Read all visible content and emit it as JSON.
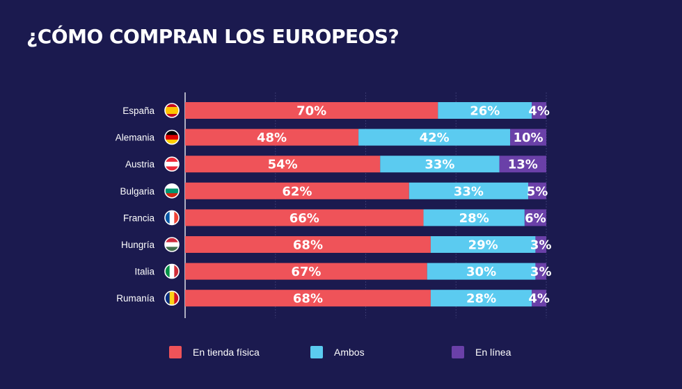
{
  "title": "¿CÓMO COMPRAN LOS EUROPEOS?",
  "colors": {
    "background": "#1b1a4f",
    "tienda": "#ef5359",
    "ambos": "#5bcbf0",
    "linea": "#6a40a8",
    "axis": "#ffffff",
    "grid": "#3a3970"
  },
  "chart_data": {
    "type": "bar",
    "orientation": "horizontal",
    "stacked": true,
    "title": "¿CÓMO COMPRAN LOS EUROPEOS?",
    "xlim": [
      0,
      100
    ],
    "grid": true,
    "legend_position": "bottom",
    "categories": [
      "España",
      "Alemania",
      "Austria",
      "Bulgaria",
      "Francia",
      "Hungría",
      "Italia",
      "Rumanía"
    ],
    "series": [
      {
        "name": "En tienda física",
        "color": "#ef5359",
        "values": [
          70,
          48,
          54,
          62,
          66,
          68,
          67,
          68
        ],
        "labels": [
          "70%",
          "48%",
          "54%",
          "62%",
          "66%",
          "68%",
          "67%",
          "68%"
        ]
      },
      {
        "name": "Ambos",
        "color": "#5bcbf0",
        "values": [
          26,
          42,
          33,
          33,
          28,
          29,
          30,
          28
        ],
        "labels": [
          "26%",
          "42%",
          "33%",
          "33%",
          "28%",
          "29%",
          "30%",
          "28%"
        ]
      },
      {
        "name": "En línea",
        "color": "#6a40a8",
        "values": [
          4,
          10,
          13,
          5,
          6,
          3,
          3,
          4
        ],
        "labels": [
          "4%",
          "10%",
          "13%",
          "5%",
          "6%",
          "3%",
          "3%",
          "4%"
        ]
      }
    ],
    "flags": [
      "spain-flag-icon",
      "germany-flag-icon",
      "austria-flag-icon",
      "bulgaria-flag-icon",
      "france-flag-icon",
      "hungary-flag-icon",
      "italy-flag-icon",
      "romania-flag-icon"
    ]
  },
  "legend": [
    {
      "label": "En tienda física",
      "color": "#ef5359"
    },
    {
      "label": "Ambos",
      "color": "#5bcbf0"
    },
    {
      "label": "En línea",
      "color": "#6a40a8"
    }
  ]
}
